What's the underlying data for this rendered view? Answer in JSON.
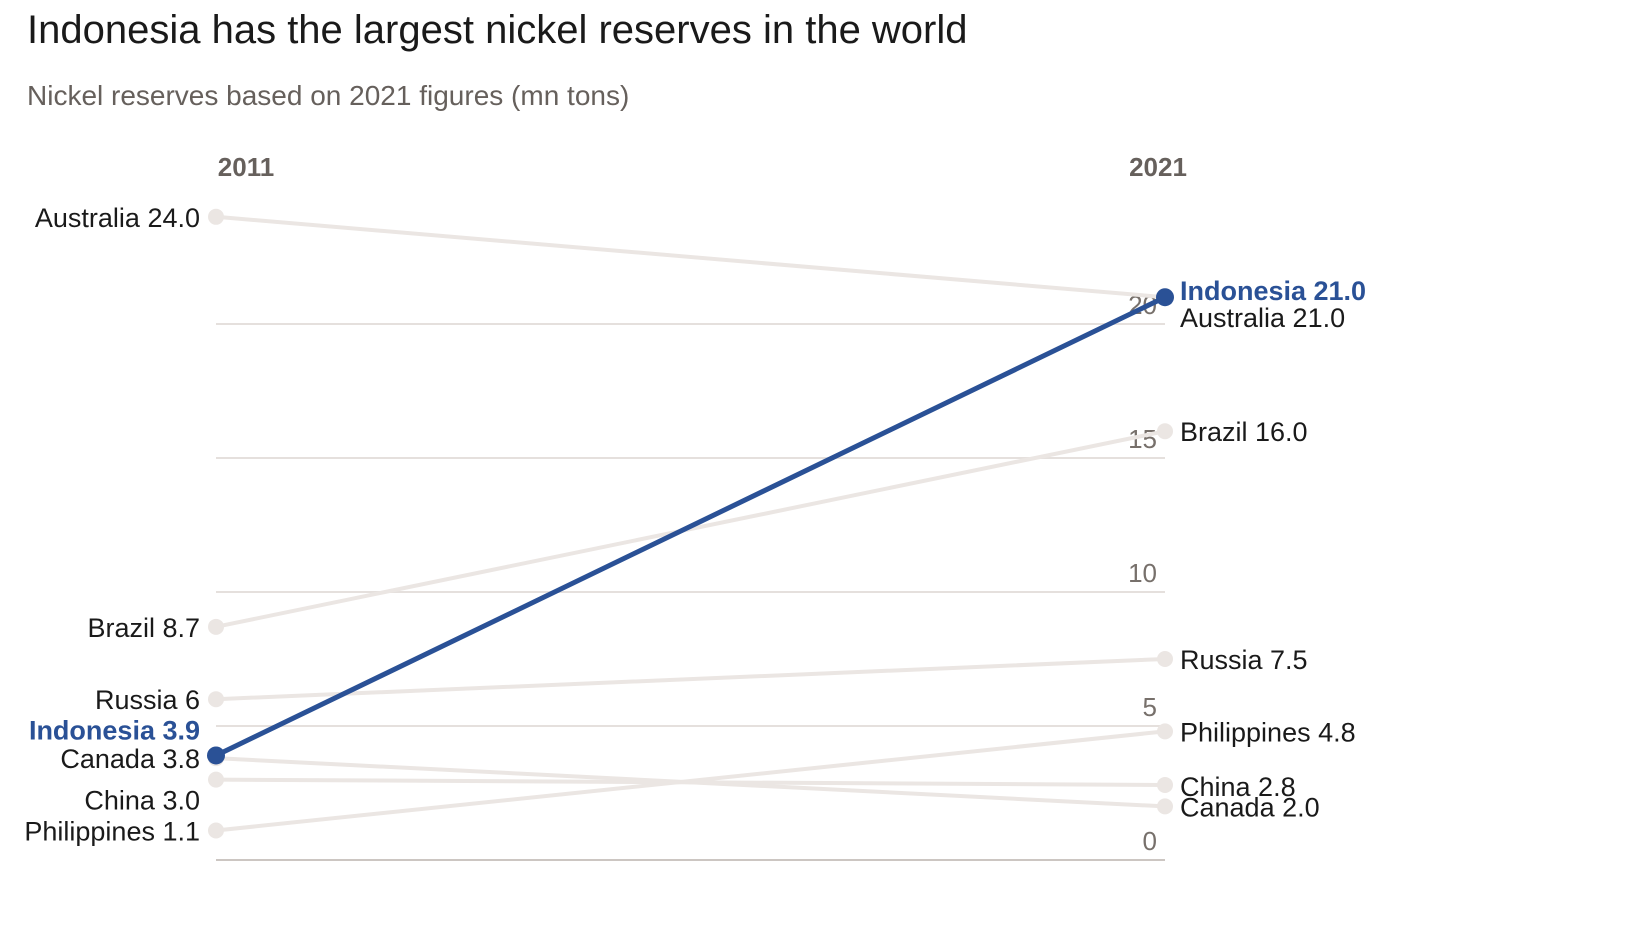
{
  "title": "Indonesia has the largest nickel reserves in the world",
  "subtitle": "Nickel reserves based on 2021 figures (mn tons)",
  "chart_data": {
    "type": "slope",
    "x": [
      "2011",
      "2021"
    ],
    "ylim": [
      0,
      25
    ],
    "y_ticks": [
      "0",
      "5",
      "10",
      "15",
      "20"
    ],
    "grid": true,
    "highlight_color": "#2a5196",
    "muted_color": "#ebe6e3",
    "series": [
      {
        "name": "Australia",
        "values": [
          24.0,
          21.0
        ],
        "start_label": "Australia 24.0",
        "end_label": "Australia 21.0",
        "highlight": false
      },
      {
        "name": "Brazil",
        "values": [
          8.7,
          16.0
        ],
        "start_label": "Brazil 8.7",
        "end_label": "Brazil 16.0",
        "highlight": false
      },
      {
        "name": "Russia",
        "values": [
          6.0,
          7.5
        ],
        "start_label": "Russia 6",
        "end_label": "Russia 7.5",
        "highlight": false
      },
      {
        "name": "Canada",
        "values": [
          3.8,
          2.0
        ],
        "start_label": "Canada 3.8",
        "end_label": "Canada 2.0",
        "highlight": false
      },
      {
        "name": "China",
        "values": [
          3.0,
          2.8
        ],
        "start_label": "China 3.0",
        "end_label": "China 2.8",
        "highlight": false
      },
      {
        "name": "Philippines",
        "values": [
          1.1,
          4.8
        ],
        "start_label": "Philippines 1.1",
        "end_label": "Philippines 4.8",
        "highlight": false
      },
      {
        "name": "Indonesia",
        "values": [
          3.9,
          21.0
        ],
        "start_label": "Indonesia 3.9",
        "end_label": "Indonesia 21.0",
        "highlight": true
      }
    ]
  }
}
